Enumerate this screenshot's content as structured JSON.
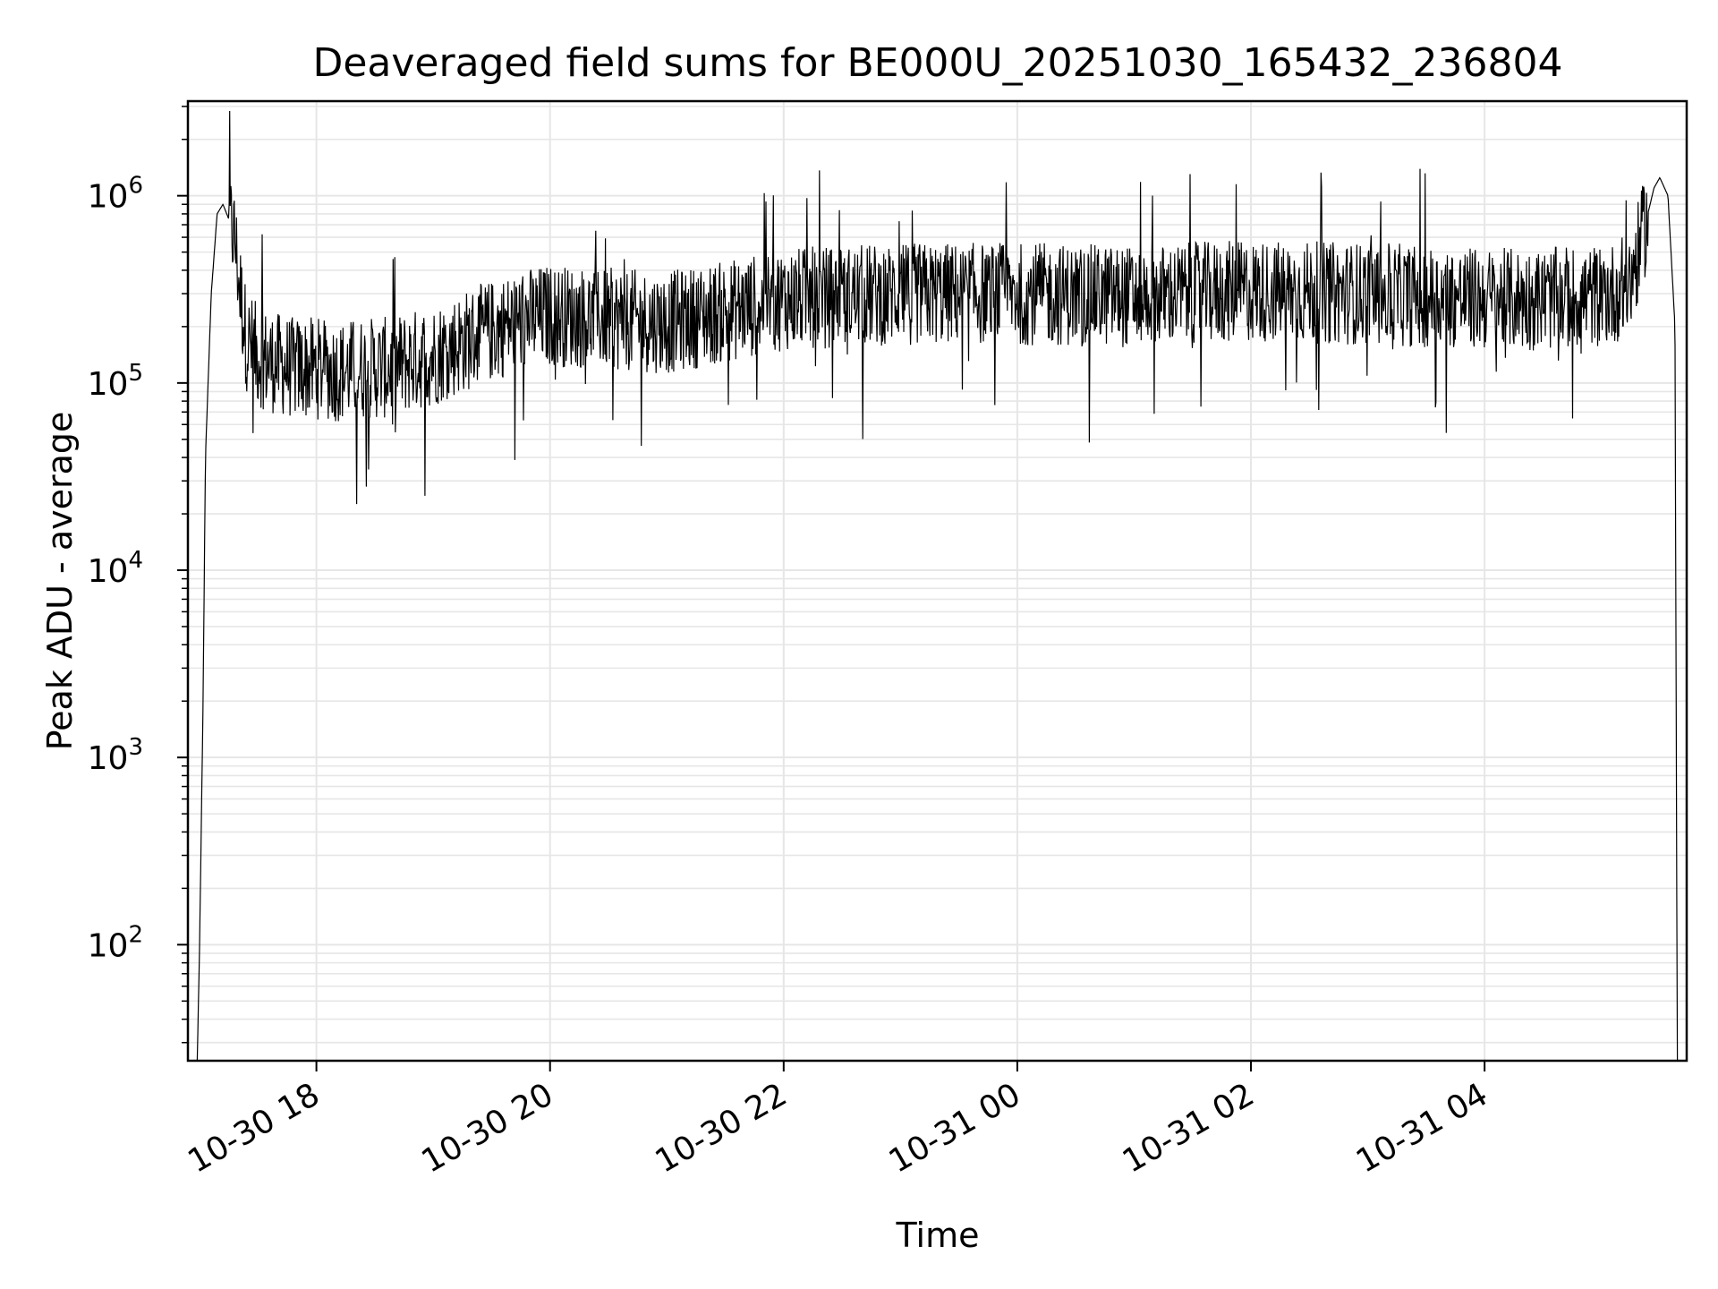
{
  "chart_data": {
    "type": "line",
    "title": "Deaveraged field sums for BE000U_20251030_165432_236804",
    "xlabel": "Time",
    "ylabel": "Peak ADU - average",
    "yscale": "log",
    "ylim": [
      24,
      3200000
    ],
    "xlim_hours": [
      16.9,
      29.73
    ],
    "grid": true,
    "line_color": "#000000",
    "grid_color": "#e6e6e6",
    "x_ticks": [
      {
        "label": "10-30 18",
        "hour": 18
      },
      {
        "label": "10-30 20",
        "hour": 20
      },
      {
        "label": "10-30 22",
        "hour": 22
      },
      {
        "label": "10-31 00",
        "hour": 24
      },
      {
        "label": "10-31 02",
        "hour": 26
      },
      {
        "label": "10-31 04",
        "hour": 28
      }
    ],
    "y_ticks": [
      {
        "base": "10",
        "exp": "2",
        "value": 100
      },
      {
        "base": "10",
        "exp": "3",
        "value": 1000
      },
      {
        "base": "10",
        "exp": "4",
        "value": 10000
      },
      {
        "base": "10",
        "exp": "5",
        "value": 100000
      },
      {
        "base": "10",
        "exp": "6",
        "value": 1000000
      }
    ],
    "series": [
      {
        "name": "field sums",
        "x_hours": [
          16.98,
          17.0,
          17.03,
          17.05,
          17.1,
          17.15,
          17.2,
          17.25,
          17.3,
          17.35,
          17.4,
          17.5,
          17.6,
          17.8,
          18.0,
          18.2,
          18.4,
          18.6,
          18.8,
          19.0,
          19.2,
          19.4,
          19.6,
          19.8,
          20.0,
          20.5,
          21.0,
          21.5,
          22.0,
          22.5,
          23.0,
          24.0,
          25.0,
          26.0,
          27.0,
          28.0,
          28.5,
          28.9,
          29.1,
          29.25,
          29.35,
          29.45,
          29.5,
          29.57,
          29.63,
          29.65
        ],
        "values": [
          24,
          100,
          2000,
          40000,
          300000,
          800000,
          900000,
          750000,
          600000,
          300000,
          170000,
          140000,
          130000,
          120000,
          120000,
          115000,
          120000,
          120000,
          130000,
          140000,
          160000,
          180000,
          200000,
          220000,
          230000,
          220000,
          210000,
          240000,
          280000,
          290000,
          300000,
          300000,
          290000,
          310000,
          300000,
          280000,
          280000,
          290000,
          300000,
          350000,
          600000,
          1100000,
          1250000,
          1000000,
          200000,
          20
        ]
      }
    ]
  }
}
